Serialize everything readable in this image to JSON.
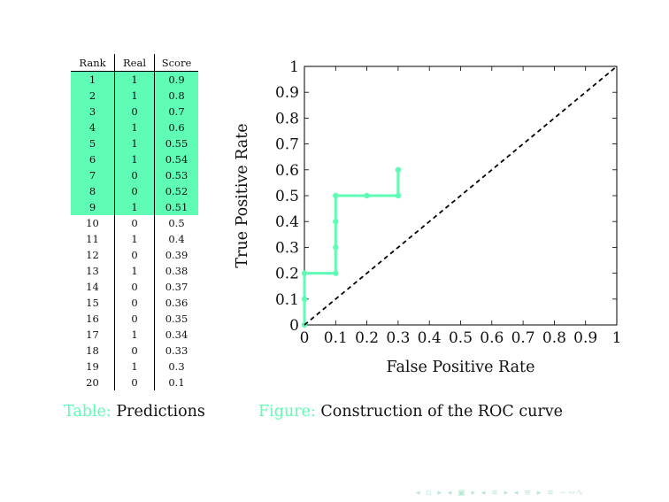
{
  "table": {
    "headers": [
      "Rank",
      "Real",
      "Score"
    ],
    "highlight_rows": 9,
    "highlight_color": "#5efcb4",
    "rows": [
      [
        "1",
        "1",
        "0.9"
      ],
      [
        "2",
        "1",
        "0.8"
      ],
      [
        "3",
        "0",
        "0.7"
      ],
      [
        "4",
        "1",
        "0.6"
      ],
      [
        "5",
        "1",
        "0.55"
      ],
      [
        "6",
        "1",
        "0.54"
      ],
      [
        "7",
        "0",
        "0.53"
      ],
      [
        "8",
        "0",
        "0.52"
      ],
      [
        "9",
        "1",
        "0.51"
      ],
      [
        "10",
        "0",
        "0.5"
      ],
      [
        "11",
        "1",
        "0.4"
      ],
      [
        "12",
        "0",
        "0.39"
      ],
      [
        "13",
        "1",
        "0.38"
      ],
      [
        "14",
        "0",
        "0.37"
      ],
      [
        "15",
        "0",
        "0.36"
      ],
      [
        "16",
        "0",
        "0.35"
      ],
      [
        "17",
        "1",
        "0.34"
      ],
      [
        "18",
        "0",
        "0.33"
      ],
      [
        "19",
        "1",
        "0.3"
      ],
      [
        "20",
        "0",
        "0.1"
      ]
    ],
    "caption_prefix": "Table:",
    "caption": "Predictions"
  },
  "figure": {
    "caption_prefix": "Figure:",
    "caption": "Construction of the ROC curve"
  },
  "chart_data": {
    "type": "line",
    "xlabel": "False Positive Rate",
    "ylabel": "True Positive Rate",
    "xlim": [
      0,
      1
    ],
    "ylim": [
      0,
      1
    ],
    "xticks": [
      "0",
      "0.1",
      "0.2",
      "0.3",
      "0.4",
      "0.5",
      "0.6",
      "0.7",
      "0.8",
      "0.9",
      "1"
    ],
    "yticks": [
      "0",
      "0.1",
      "0.2",
      "0.3",
      "0.4",
      "0.5",
      "0.6",
      "0.7",
      "0.8",
      "0.9",
      "1"
    ],
    "grid": false,
    "series": [
      {
        "style": "roc",
        "color": "#5efcb4",
        "x": [
          0,
          0,
          0,
          0.1,
          0.1,
          0.1,
          0.1,
          0.2,
          0.3,
          0.3
        ],
        "y": [
          0,
          0.1,
          0.2,
          0.2,
          0.3,
          0.4,
          0.5,
          0.5,
          0.5,
          0.6
        ]
      },
      {
        "style": "diagonal-dashed",
        "color": "#000000",
        "x": [
          0,
          1
        ],
        "y": [
          0,
          1
        ]
      }
    ]
  },
  "nav": {
    "symbols": "◂ ▫ ▸ ◂ ▣ ▸ ◂ ≡ ▸ ◂ ≡ ▸ ≡ ∽∾∿"
  }
}
